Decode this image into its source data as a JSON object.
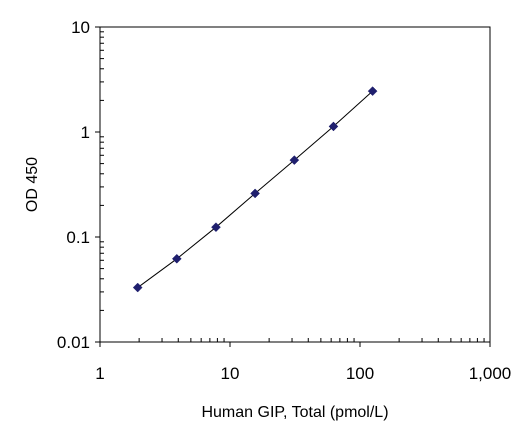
{
  "chart_data": {
    "type": "scatter",
    "title": "",
    "xlabel": "Human GIP, Total (pmol/L)",
    "ylabel": "OD 450",
    "x_scale": "log",
    "y_scale": "log",
    "xlim": [
      1,
      1000
    ],
    "ylim": [
      0.01,
      10
    ],
    "x_ticks": [
      1,
      10,
      100,
      1000
    ],
    "x_tick_labels": [
      "1",
      "10",
      "100",
      "1,000"
    ],
    "y_ticks": [
      0.01,
      0.1,
      1,
      10
    ],
    "y_tick_labels": [
      "0.01",
      "0.1",
      "1",
      "10"
    ],
    "grid": false,
    "legend": "none",
    "fit_line": true,
    "marker": "diamond",
    "marker_color": "#1f1f6e",
    "line_color": "#000000",
    "series": [
      {
        "x": [
          1.95,
          3.9,
          7.8,
          15.6,
          31.25,
          62.5,
          125
        ],
        "y": [
          0.033,
          0.062,
          0.124,
          0.26,
          0.54,
          1.13,
          2.45
        ]
      }
    ]
  }
}
